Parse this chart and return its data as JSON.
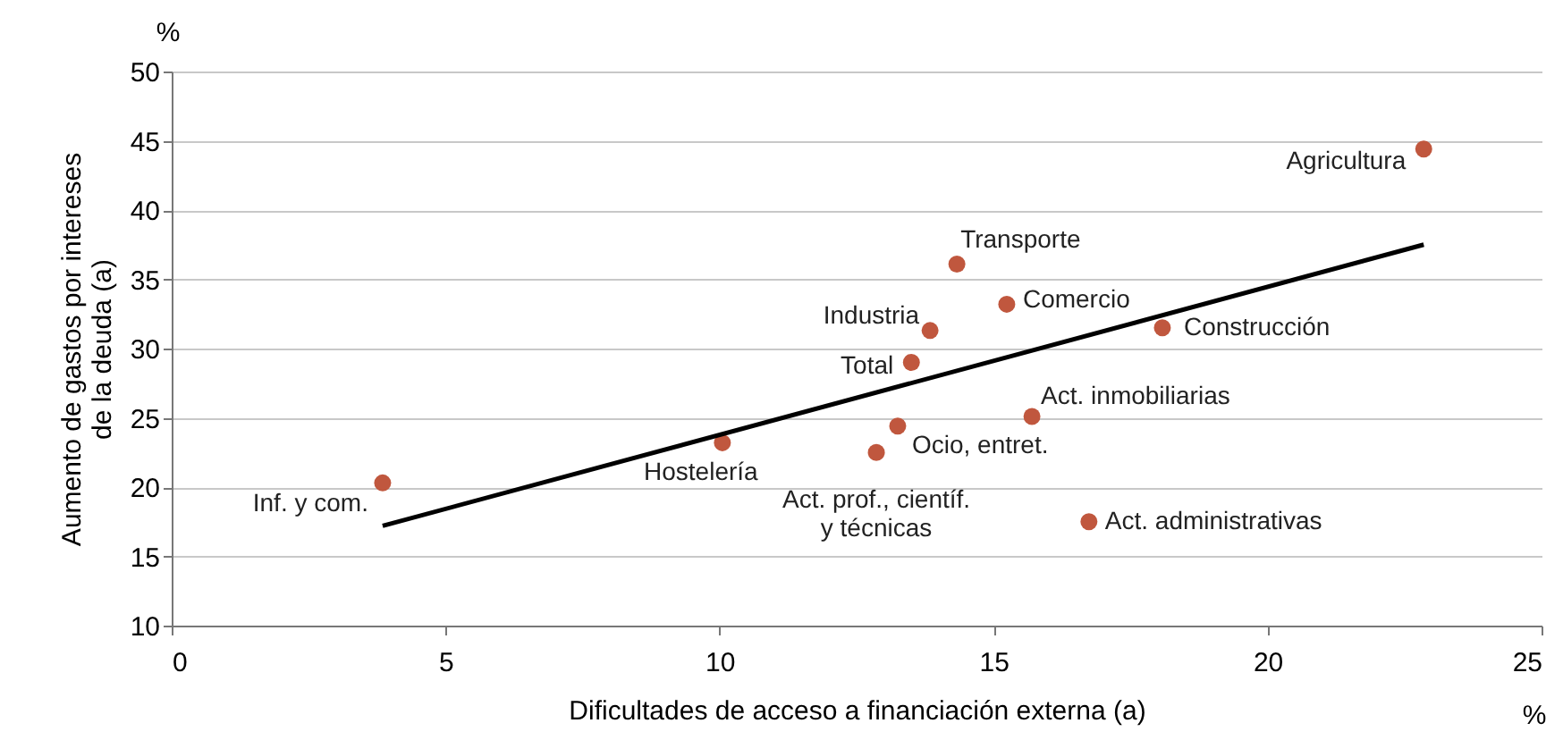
{
  "chart_data": {
    "type": "scatter",
    "xlabel": "Dificultades de acceso a financiación externa (a)",
    "ylabel": "Aumento de gastos por intereses\nde la deuda (a)",
    "xlim": [
      0,
      25
    ],
    "xticks": [
      0,
      5,
      10,
      15,
      20,
      25
    ],
    "ylim": [
      10,
      50
    ],
    "yticks": [
      10,
      15,
      20,
      25,
      30,
      35,
      40,
      45,
      50
    ],
    "grid": "y",
    "marker": "circle",
    "series": [
      {
        "color": "#c0573e",
        "x": [
          3.85,
          10.05,
          12.86,
          13.25,
          13.5,
          13.84,
          14.33,
          15.24,
          15.7,
          18.08,
          16.74,
          22.85
        ],
        "values": [
          20.3,
          23.2,
          22.5,
          24.4,
          29.0,
          31.3,
          36.1,
          33.2,
          25.1,
          31.5,
          17.5,
          44.4
        ]
      },
      {
        "type": "line",
        "color": "#000000",
        "line_style": "solid",
        "marker": "none",
        "x": [
          3.85,
          22.85
        ],
        "values": [
          17.2,
          37.5
        ]
      }
    ],
    "annotations": [
      {
        "text": "Inf. y com.",
        "x": 3.85,
        "y": 20.3
      },
      {
        "text": "Hostelería",
        "x": 10.05,
        "y": 23.2
      },
      {
        "text": "Act. prof., científ.\ny técnicas",
        "x": 12.86,
        "y": 22.5
      },
      {
        "text": "Ocio, entret.",
        "x": 13.25,
        "y": 24.4
      },
      {
        "text": "Total",
        "x": 13.5,
        "y": 29.0
      },
      {
        "text": "Industria",
        "x": 13.84,
        "y": 31.3
      },
      {
        "text": "Transporte",
        "x": 14.33,
        "y": 36.1
      },
      {
        "text": "Comercio",
        "x": 15.24,
        "y": 33.2
      },
      {
        "text": "Act. inmobiliarias",
        "x": 15.7,
        "y": 25.1
      },
      {
        "text": "Construcción",
        "x": 18.08,
        "y": 31.5
      },
      {
        "text": "Act. administrativas",
        "x": 16.74,
        "y": 17.5
      },
      {
        "text": "Agricultura",
        "x": 22.85,
        "y": 44.4
      },
      "%",
      "%"
    ]
  }
}
